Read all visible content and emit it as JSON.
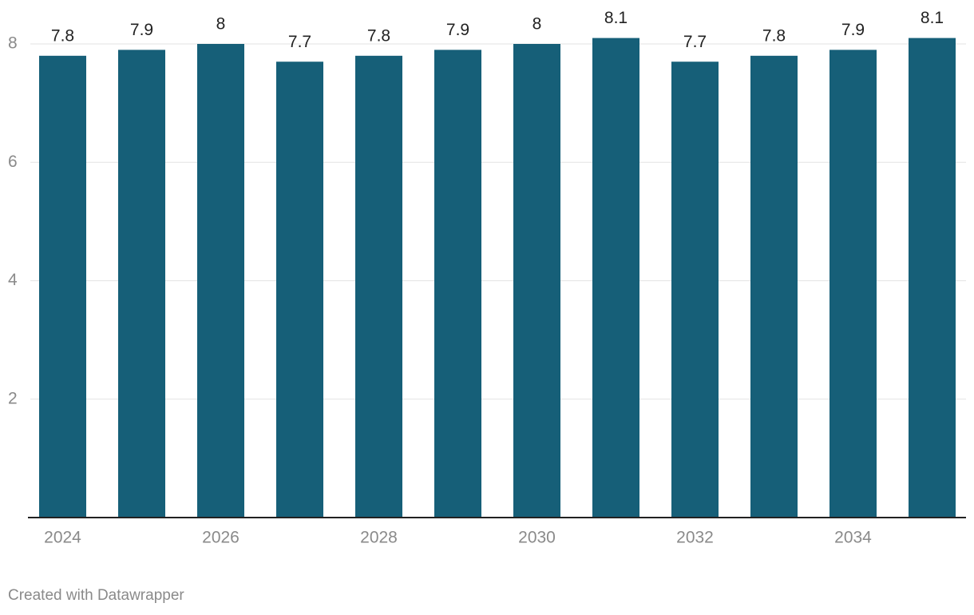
{
  "chart_data": {
    "type": "bar",
    "categories": [
      "2024",
      null,
      "2026",
      null,
      "2028",
      null,
      "2030",
      null,
      "2032",
      null,
      "2034",
      null
    ],
    "values": [
      7.8,
      7.9,
      8,
      7.7,
      7.8,
      7.9,
      8,
      8.1,
      7.7,
      7.8,
      7.9,
      8.1
    ],
    "color": "#165f78",
    "ylim": [
      0,
      8
    ],
    "yticks": [
      2,
      4,
      6,
      8
    ],
    "grid": true,
    "footer": "Created with Datawrapper"
  }
}
